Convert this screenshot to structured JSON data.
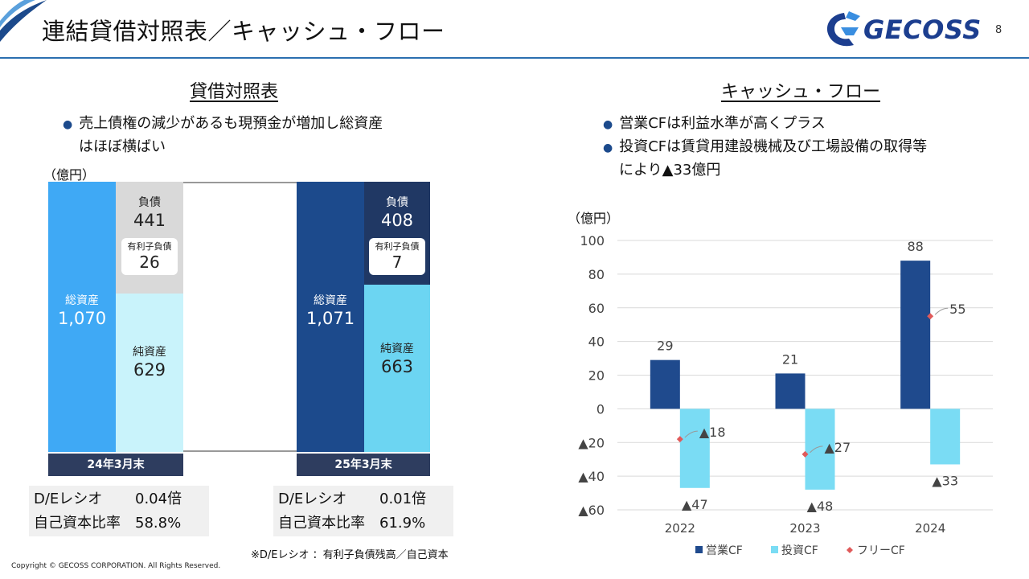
{
  "header": {
    "title": "連結貸借対照表／キャッシュ・フロー",
    "logo_text": "GECOSS",
    "page_number": "8",
    "colors": {
      "accent": "#2b6fb0",
      "logo": "#1c3e8f"
    }
  },
  "balance_sheet": {
    "title": "貸借対照表",
    "bullet_lines": [
      "売上債権の減少があるも現預金が増加し総資産",
      "はほぼ横ばい"
    ],
    "unit": "（億円）",
    "periods": [
      {
        "date_label": "24年3月末",
        "total_assets_label": "総資産",
        "total_assets": "1,070",
        "liabilities_label": "負債",
        "liabilities": "441",
        "debt_label": "有利子負債",
        "debt": "26",
        "equity_label": "純資産",
        "equity": "629",
        "de_ratio_label": "D/Eレシオ",
        "de_ratio": "0.04倍",
        "equity_ratio_label": "自己資本比率",
        "equity_ratio": "58.8%"
      },
      {
        "date_label": "25年3月末",
        "total_assets_label": "総資産",
        "total_assets": "1,071",
        "liabilities_label": "負債",
        "liabilities": "408",
        "debt_label": "有利子負債",
        "debt": "7",
        "equity_label": "純資産",
        "equity": "663",
        "de_ratio_label": "D/Eレシオ",
        "de_ratio": "0.01倍",
        "equity_ratio_label": "自己資本比率",
        "equity_ratio": "61.9%"
      }
    ],
    "footnote": "※D/Eレシオ ：有利子負債残高／自己資本"
  },
  "cash_flow": {
    "title": "キャッシュ・フロー",
    "bullet_lines": [
      "営業CFは利益水準が高くプラス",
      "投資CFは賃貸用建設機械及び工場設備の取得等",
      "により▲33億円"
    ]
  },
  "chart_data": {
    "type": "bar",
    "unit_label": "（億円）",
    "categories": [
      "2022",
      "2023",
      "2024"
    ],
    "ylim": [
      -60,
      100
    ],
    "yticks": [
      100,
      80,
      60,
      40,
      20,
      0,
      -20,
      -40,
      -60
    ],
    "ytick_labels": [
      "100",
      "80",
      "60",
      "40",
      "20",
      "0",
      "▲20",
      "▲40",
      "▲60"
    ],
    "grid": true,
    "legend_position": "bottom",
    "series": [
      {
        "name": "営業CF",
        "kind": "bar",
        "color": "#1f4a8d",
        "values": [
          29,
          21,
          88
        ],
        "labels": [
          "29",
          "21",
          "88"
        ]
      },
      {
        "name": "投資CF",
        "kind": "bar",
        "color": "#7adcf4",
        "values": [
          -47,
          -48,
          -33
        ],
        "labels": [
          "▲47",
          "▲48",
          "▲33"
        ]
      },
      {
        "name": "フリーCF",
        "kind": "marker",
        "color": "#e05a5a",
        "values": [
          -18,
          -27,
          55
        ],
        "labels": [
          "▲18",
          "▲27",
          "55"
        ]
      }
    ]
  },
  "footer": {
    "copyright": "Copyright © GECOSS CORPORATION. All Rights Reserved."
  }
}
